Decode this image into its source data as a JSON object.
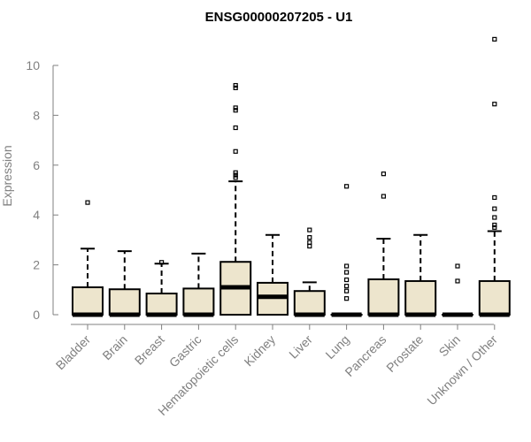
{
  "chart_data": {
    "type": "box",
    "title": "ENSG00000207205 - U1",
    "xlabel": "",
    "ylabel": "Expression",
    "ylim": [
      0,
      11.3
    ],
    "yticks": [
      0,
      2,
      4,
      6,
      8,
      10
    ],
    "box_fill": "#ede5cd",
    "outline_color": "#000000",
    "categories": [
      "Bladder",
      "Brain",
      "Breast",
      "Gastric",
      "Hematopoietic cells",
      "Kidney",
      "Liver",
      "Lung",
      "Pancreas",
      "Prostate",
      "Skin",
      "Unknown / Other"
    ],
    "boxes": [
      {
        "category": "Bladder",
        "q1": 0,
        "median": 0,
        "q3": 1.1,
        "whisker_low": 0,
        "whisker_high": 2.65,
        "outliers": [
          4.5
        ]
      },
      {
        "category": "Brain",
        "q1": 0,
        "median": 0,
        "q3": 1.02,
        "whisker_low": 0,
        "whisker_high": 2.55,
        "outliers": []
      },
      {
        "category": "Breast",
        "q1": 0,
        "median": 0,
        "q3": 0.85,
        "whisker_low": 0,
        "whisker_high": 2.05,
        "outliers": [
          2.1
        ]
      },
      {
        "category": "Gastric",
        "q1": 0,
        "median": 0,
        "q3": 1.05,
        "whisker_low": 0,
        "whisker_high": 2.45,
        "outliers": []
      },
      {
        "category": "Hematopoietic cells",
        "q1": 0,
        "median": 1.1,
        "q3": 2.12,
        "whisker_low": 0,
        "whisker_high": 5.35,
        "outliers": [
          5.5,
          5.6,
          5.7,
          6.55,
          7.5,
          8.2,
          8.3,
          9.1,
          9.2
        ]
      },
      {
        "category": "Kidney",
        "q1": 0,
        "median": 0.72,
        "q3": 1.28,
        "whisker_low": 0,
        "whisker_high": 3.2,
        "outliers": []
      },
      {
        "category": "Liver",
        "q1": 0,
        "median": 0,
        "q3": 0.95,
        "whisker_low": 0,
        "whisker_high": 1.3,
        "outliers": [
          2.75,
          2.9,
          3.1,
          3.4
        ]
      },
      {
        "category": "Lung",
        "q1": 0,
        "median": 0,
        "q3": 0,
        "whisker_low": 0,
        "whisker_high": 0,
        "outliers": [
          0.65,
          0.95,
          1.15,
          1.4,
          1.7,
          1.95,
          5.15
        ]
      },
      {
        "category": "Pancreas",
        "q1": 0,
        "median": 0,
        "q3": 1.42,
        "whisker_low": 0,
        "whisker_high": 3.05,
        "outliers": [
          4.75,
          5.65
        ]
      },
      {
        "category": "Prostate",
        "q1": 0,
        "median": 0,
        "q3": 1.35,
        "whisker_low": 0,
        "whisker_high": 3.2,
        "outliers": []
      },
      {
        "category": "Skin",
        "q1": 0,
        "median": 0,
        "q3": 0,
        "whisker_low": 0,
        "whisker_high": 0,
        "outliers": [
          1.35,
          1.95
        ]
      },
      {
        "category": "Unknown / Other",
        "q1": 0,
        "median": 0,
        "q3": 1.35,
        "whisker_low": 0,
        "whisker_high": 3.35,
        "outliers": [
          3.5,
          3.6,
          3.9,
          4.25,
          4.7,
          8.45,
          11.05
        ]
      }
    ]
  }
}
